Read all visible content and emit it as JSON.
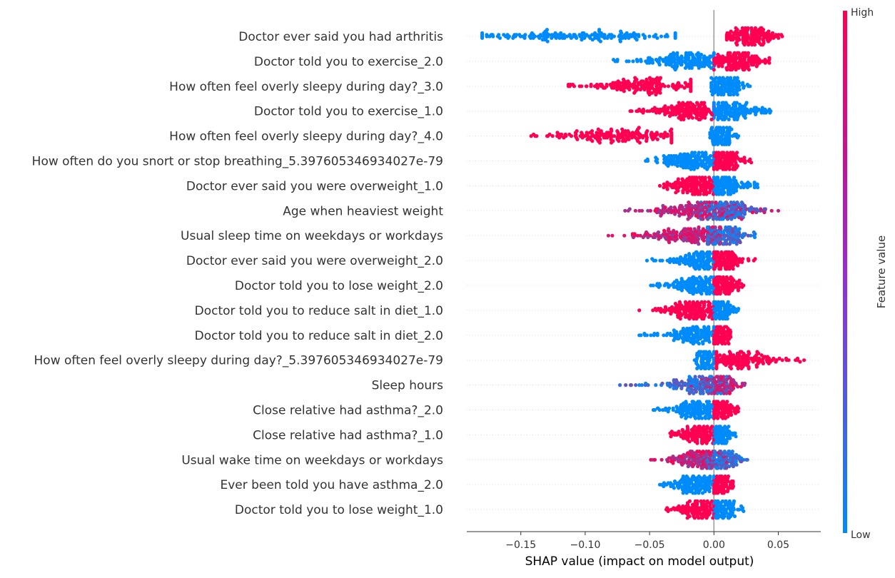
{
  "chart_data": {
    "type": "scatter",
    "subtype": "shap-beeswarm",
    "xlabel": "SHAP value (impact on model output)",
    "xlim": [
      -0.192,
      0.083
    ],
    "xticks": [
      -0.15,
      -0.1,
      -0.05,
      0.0,
      0.05
    ],
    "xtick_labels": [
      "−0.15",
      "−0.10",
      "−0.05",
      "0.00",
      "0.05"
    ],
    "colorbar": {
      "label": "Feature value",
      "high_label": "High",
      "low_label": "Low",
      "high_color": "#ff0052",
      "low_color": "#008bfb"
    },
    "features": [
      {
        "name": "Doctor ever said you had arthritis",
        "low": {
          "min": -0.18,
          "max": -0.03,
          "center": -0.11,
          "spread": 0.04
        },
        "high": {
          "min": 0.01,
          "max": 0.053,
          "center": 0.028,
          "spread": 0.009
        }
      },
      {
        "name": "Doctor told you to exercise_2.0",
        "low": {
          "min": -0.078,
          "max": 0.0,
          "center": -0.022,
          "spread": 0.016
        },
        "high": {
          "min": 0.0,
          "max": 0.043,
          "center": 0.018,
          "spread": 0.01
        }
      },
      {
        "name": "How often feel overly sleepy during day?_3.0",
        "low": {
          "min": -0.002,
          "max": 0.028,
          "center": 0.009,
          "spread": 0.006
        },
        "high": {
          "min": -0.113,
          "max": -0.018,
          "center": -0.055,
          "spread": 0.022
        }
      },
      {
        "name": "Doctor told you to exercise_1.0",
        "low": {
          "min": 0.0,
          "max": 0.044,
          "center": 0.01,
          "spread": 0.012
        },
        "high": {
          "min": -0.065,
          "max": 0.0,
          "center": -0.02,
          "spread": 0.014
        }
      },
      {
        "name": "How often feel overly sleepy during day?_4.0",
        "low": {
          "min": -0.003,
          "max": 0.019,
          "center": 0.005,
          "spread": 0.004
        },
        "high": {
          "min": -0.142,
          "max": -0.033,
          "center": -0.075,
          "spread": 0.025
        }
      },
      {
        "name": "How often do you snort or stop breathing_5.397605346934027e-79",
        "low": {
          "min": -0.053,
          "max": 0.0,
          "center": -0.015,
          "spread": 0.012
        },
        "high": {
          "min": 0.0,
          "max": 0.029,
          "center": 0.006,
          "spread": 0.007
        }
      },
      {
        "name": "Doctor ever said you were overweight_1.0",
        "low": {
          "min": 0.0,
          "max": 0.034,
          "center": 0.007,
          "spread": 0.008
        },
        "high": {
          "min": -0.042,
          "max": 0.0,
          "center": -0.015,
          "spread": 0.01
        }
      },
      {
        "name": "Age when heaviest weight",
        "low": {
          "min": -0.01,
          "max": 0.04,
          "center": 0.008,
          "spread": 0.01
        },
        "high": {
          "min": -0.069,
          "max": 0.05,
          "center": -0.01,
          "spread": 0.018
        },
        "mixed": true
      },
      {
        "name": "Usual sleep time on weekdays or workdays",
        "low": {
          "min": -0.005,
          "max": 0.032,
          "center": 0.008,
          "spread": 0.008
        },
        "high": {
          "min": -0.082,
          "max": 0.005,
          "center": -0.02,
          "spread": 0.018
        },
        "mixed": true
      },
      {
        "name": "Doctor ever said you were overweight_2.0",
        "low": {
          "min": -0.052,
          "max": 0.0,
          "center": -0.01,
          "spread": 0.01
        },
        "high": {
          "min": 0.0,
          "max": 0.032,
          "center": 0.007,
          "spread": 0.006
        }
      },
      {
        "name": "Doctor told you to lose weight_2.0",
        "low": {
          "min": -0.049,
          "max": 0.0,
          "center": -0.012,
          "spread": 0.01
        },
        "high": {
          "min": 0.0,
          "max": 0.023,
          "center": 0.006,
          "spread": 0.005
        }
      },
      {
        "name": "Doctor told you to reduce salt in diet_1.0",
        "low": {
          "min": 0.0,
          "max": 0.019,
          "center": 0.005,
          "spread": 0.004
        },
        "high": {
          "min": -0.058,
          "max": 0.0,
          "center": -0.015,
          "spread": 0.012
        }
      },
      {
        "name": "Doctor told you to reduce salt in diet_2.0",
        "low": {
          "min": -0.058,
          "max": 0.0,
          "center": -0.012,
          "spread": 0.01
        },
        "high": {
          "min": 0.0,
          "max": 0.013,
          "center": 0.004,
          "spread": 0.003
        }
      },
      {
        "name": "How often feel overly sleepy during day?_5.397605346934027e-79",
        "low": {
          "min": -0.015,
          "max": 0.0,
          "center": -0.004,
          "spread": 0.004
        },
        "high": {
          "min": 0.002,
          "max": 0.07,
          "center": 0.018,
          "spread": 0.014
        }
      },
      {
        "name": "Sleep hours",
        "low": {
          "min": -0.073,
          "max": 0.01,
          "center": -0.01,
          "spread": 0.014
        },
        "high": {
          "min": -0.02,
          "max": 0.024,
          "center": 0.005,
          "spread": 0.006
        },
        "mixed": true
      },
      {
        "name": "Close relative had asthma?_2.0",
        "low": {
          "min": -0.047,
          "max": 0.0,
          "center": -0.01,
          "spread": 0.01
        },
        "high": {
          "min": 0.0,
          "max": 0.019,
          "center": 0.004,
          "spread": 0.004
        }
      },
      {
        "name": "Close relative had asthma?_1.0",
        "low": {
          "min": 0.0,
          "max": 0.017,
          "center": 0.004,
          "spread": 0.004
        },
        "high": {
          "min": -0.034,
          "max": 0.0,
          "center": -0.01,
          "spread": 0.008
        }
      },
      {
        "name": "Usual wake time on weekdays or workdays",
        "low": {
          "min": -0.01,
          "max": 0.026,
          "center": 0.005,
          "spread": 0.007
        },
        "high": {
          "min": -0.049,
          "max": 0.01,
          "center": -0.01,
          "spread": 0.01
        },
        "mixed": true
      },
      {
        "name": "Ever been told you have asthma_2.0",
        "low": {
          "min": -0.042,
          "max": 0.0,
          "center": -0.012,
          "spread": 0.01
        },
        "high": {
          "min": 0.0,
          "max": 0.015,
          "center": 0.004,
          "spread": 0.003
        }
      },
      {
        "name": "Doctor told you to lose weight_1.0",
        "low": {
          "min": 0.0,
          "max": 0.023,
          "center": 0.005,
          "spread": 0.005
        },
        "high": {
          "min": -0.037,
          "max": 0.0,
          "center": -0.01,
          "spread": 0.008
        }
      }
    ]
  }
}
